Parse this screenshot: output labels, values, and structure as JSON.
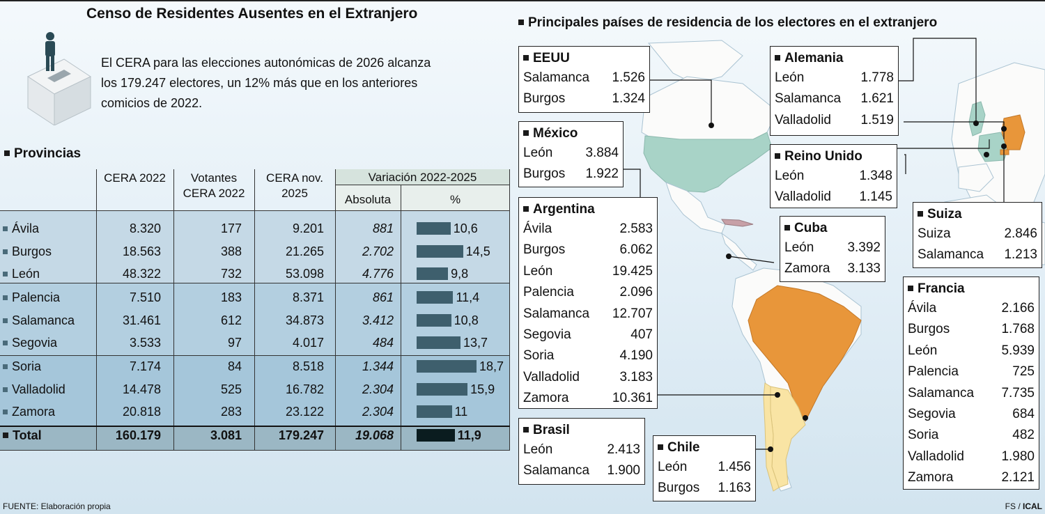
{
  "title": "Censo de Residentes Ausentes en el Extranjero",
  "intro": "El CERA para las elecciones autonómicas de 2026 alcanza los 179.247 electores, un 12% más que en los anteriores comicios de 2022.",
  "provinces_header": "Provincias",
  "table": {
    "headers": {
      "cera2022": "CERA 2022",
      "votantes": "Votantes CERA 2022",
      "cera2025": "CERA nov. 2025",
      "variacion": "Variación 2022-2025",
      "absoluta": "Absoluta",
      "pct": "%"
    },
    "rows": [
      {
        "provincia": "Ávila",
        "cera2022": "8.320",
        "votantes": "177",
        "cera2025": "9.201",
        "absoluta": "881",
        "pct": "10,6"
      },
      {
        "provincia": "Burgos",
        "cera2022": "18.563",
        "votantes": "388",
        "cera2025": "21.265",
        "absoluta": "2.702",
        "pct": "14,5"
      },
      {
        "provincia": "León",
        "cera2022": "48.322",
        "votantes": "732",
        "cera2025": "53.098",
        "absoluta": "4.776",
        "pct": "9,8"
      },
      {
        "provincia": "Palencia",
        "cera2022": "7.510",
        "votantes": "183",
        "cera2025": "8.371",
        "absoluta": "861",
        "pct": "11,4"
      },
      {
        "provincia": "Salamanca",
        "cera2022": "31.461",
        "votantes": "612",
        "cera2025": "34.873",
        "absoluta": "3.412",
        "pct": "10,8"
      },
      {
        "provincia": "Segovia",
        "cera2022": "3.533",
        "votantes": "97",
        "cera2025": "4.017",
        "absoluta": "484",
        "pct": "13,7"
      },
      {
        "provincia": "Soria",
        "cera2022": "7.174",
        "votantes": "84",
        "cera2025": "8.518",
        "absoluta": "1.344",
        "pct": "18,7"
      },
      {
        "provincia": "Valladolid",
        "cera2022": "14.478",
        "votantes": "525",
        "cera2025": "16.782",
        "absoluta": "2.304",
        "pct": "15,9"
      },
      {
        "provincia": "Zamora",
        "cera2022": "20.818",
        "votantes": "283",
        "cera2025": "23.122",
        "absoluta": "2.304",
        "pct": "11"
      }
    ],
    "total": {
      "provincia": "Total",
      "cera2022": "160.179",
      "votantes": "3.081",
      "cera2025": "179.247",
      "absoluta": "19.068",
      "pct": "11,9"
    }
  },
  "chart_data": {
    "type": "bar",
    "title": "Variación 2022-2025",
    "xlabel": "",
    "ylabel": "%",
    "categories": [
      "Ávila",
      "Burgos",
      "León",
      "Palencia",
      "Salamanca",
      "Segovia",
      "Soria",
      "Valladolid",
      "Zamora",
      "Total"
    ],
    "values": [
      10.6,
      14.5,
      9.8,
      11.4,
      10.8,
      13.7,
      18.7,
      15.9,
      11,
      11.9
    ],
    "xlim": [
      0,
      20
    ]
  },
  "map": {
    "title": "Principales países de residencia de los electores en el extranjero",
    "countries": [
      {
        "name": "EEUU",
        "rows": [
          [
            "Salamanca",
            "1.526"
          ],
          [
            "Burgos",
            "1.324"
          ]
        ]
      },
      {
        "name": "México",
        "rows": [
          [
            "León",
            "3.884"
          ],
          [
            "Burgos",
            "1.922"
          ]
        ]
      },
      {
        "name": "Argentina",
        "rows": [
          [
            "Ávila",
            "2.583"
          ],
          [
            "Burgos",
            "6.062"
          ],
          [
            "León",
            "19.425"
          ],
          [
            "Palencia",
            "2.096"
          ],
          [
            "Salamanca",
            "12.707"
          ],
          [
            "Segovia",
            "407"
          ],
          [
            "Soria",
            "4.190"
          ],
          [
            "Valladolid",
            "3.183"
          ],
          [
            "Zamora",
            "10.361"
          ]
        ]
      },
      {
        "name": "Brasil",
        "rows": [
          [
            "León",
            "2.413"
          ],
          [
            "Salamanca",
            "1.900"
          ]
        ]
      },
      {
        "name": "Chile",
        "rows": [
          [
            "León",
            "1.456"
          ],
          [
            "Burgos",
            "1.163"
          ]
        ]
      },
      {
        "name": "Cuba",
        "rows": [
          [
            "León",
            "3.392"
          ],
          [
            "Zamora",
            "3.133"
          ]
        ]
      },
      {
        "name": "Alemania",
        "rows": [
          [
            "León",
            "1.778"
          ],
          [
            "Salamanca",
            "1.621"
          ],
          [
            "Valladolid",
            "1.519"
          ]
        ]
      },
      {
        "name": "Reino Unido",
        "rows": [
          [
            "León",
            "1.348"
          ],
          [
            "Valladolid",
            "1.145"
          ]
        ]
      },
      {
        "name": "Suiza",
        "rows": [
          [
            "Suiza",
            "2.846"
          ],
          [
            "Salamanca",
            "1.213"
          ]
        ]
      },
      {
        "name": "Francia",
        "rows": [
          [
            "Ávila",
            "2.166"
          ],
          [
            "Burgos",
            "1.768"
          ],
          [
            "León",
            "5.939"
          ],
          [
            "Palencia",
            "725"
          ],
          [
            "Salamanca",
            "7.735"
          ],
          [
            "Segovia",
            "684"
          ],
          [
            "Soria",
            "482"
          ],
          [
            "Valladolid",
            "1.980"
          ],
          [
            "Zamora",
            "2.121"
          ]
        ]
      }
    ],
    "colors": {
      "ocean": "#d2e4ef",
      "land": "#fbfbfa",
      "highlight_green": "#a8d3c7",
      "highlight_orange": "#e8963a",
      "highlight_yellow": "#f9e4a4",
      "cuba": "#c7a0a7"
    }
  },
  "source": "FUENTE: Elaboración propia",
  "credit_a": "FS / ",
  "credit_b": "ICAL"
}
